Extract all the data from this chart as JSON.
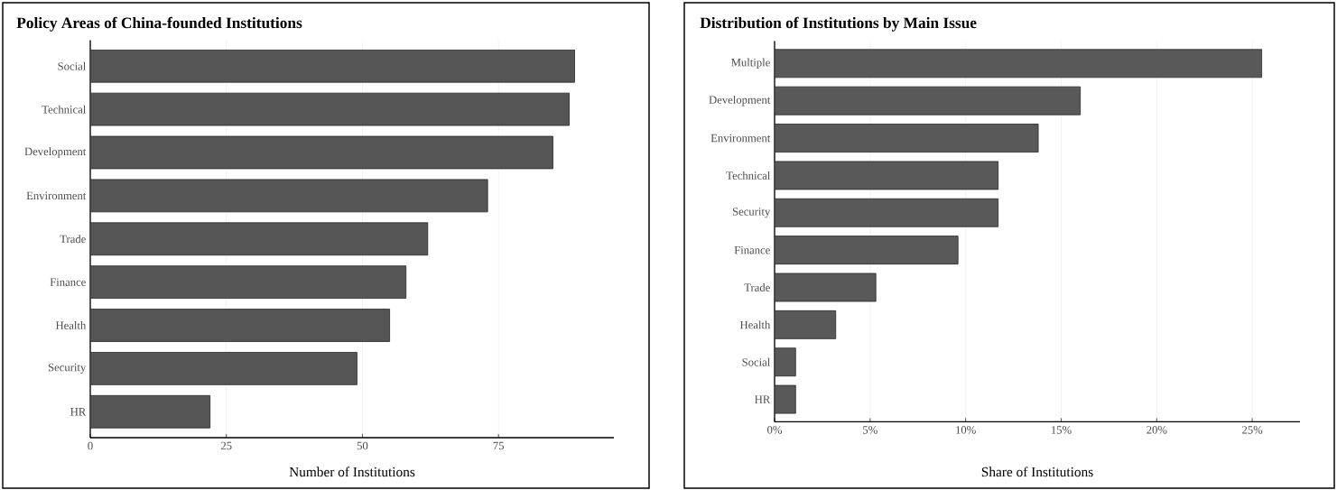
{
  "chart_data": [
    {
      "type": "bar",
      "orientation": "horizontal",
      "title": "Policy Areas of China-founded Institutions",
      "xlabel": "Number of Institutions",
      "categories": [
        "Social",
        "Technical",
        "Development",
        "Environment",
        "Trade",
        "Finance",
        "Health",
        "Security",
        "HR"
      ],
      "values": [
        89,
        88,
        85,
        73,
        62,
        58,
        55,
        49,
        22
      ],
      "color": "#555555",
      "xlim": [
        0,
        96.2
      ],
      "xticks": [
        0,
        25,
        50,
        75
      ],
      "grid": "x"
    },
    {
      "type": "bar",
      "orientation": "horizontal",
      "title": "Distribution of Institutions by Main Issue",
      "xlabel": "Share of Institutions",
      "categories": [
        "Multiple",
        "Development",
        "Environment",
        "Technical",
        "Security",
        "Finance",
        "Trade",
        "Health",
        "Social",
        "HR"
      ],
      "values": [
        25.5,
        16.0,
        13.8,
        11.7,
        11.7,
        9.6,
        5.3,
        3.2,
        1.1,
        1.1
      ],
      "color": "#595959",
      "xlim": [
        0,
        27.5
      ],
      "xticks": [
        {
          "value": 0,
          "label": "0%"
        },
        {
          "value": 5,
          "label": "5%"
        },
        {
          "value": 10,
          "label": "10%"
        },
        {
          "value": 15,
          "label": "15%"
        },
        {
          "value": 20,
          "label": "20%"
        },
        {
          "value": 25,
          "label": "25%"
        }
      ],
      "grid": "x"
    }
  ]
}
